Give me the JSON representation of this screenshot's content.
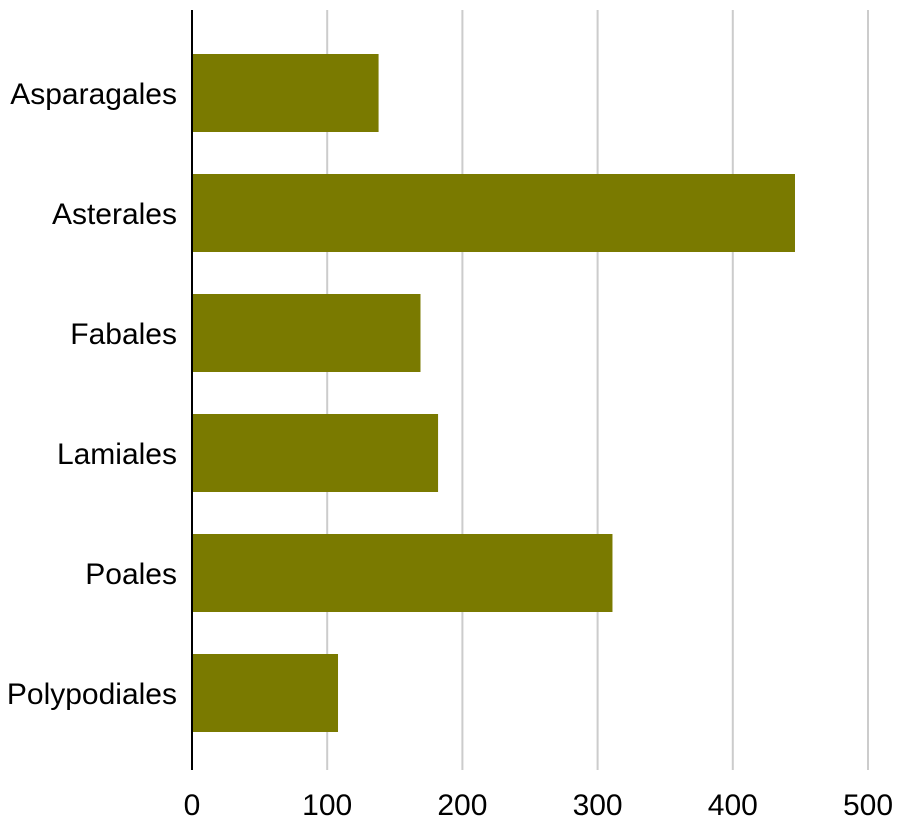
{
  "chart_data": {
    "type": "bar",
    "orientation": "horizontal",
    "title": "",
    "xlabel": "",
    "ylabel": "",
    "categories": [
      "Asparagales",
      "Asterales",
      "Fabales",
      "Lamiales",
      "Poales",
      "Polypodiales"
    ],
    "values": [
      138,
      446,
      169,
      182,
      311,
      108
    ],
    "xlim": [
      0,
      500
    ],
    "xticks": [
      0,
      100,
      200,
      300,
      400,
      500
    ],
    "xtick_labels": [
      "0",
      "100",
      "200",
      "300",
      "400",
      "500"
    ],
    "grid": true,
    "legend": "none",
    "bar_color": "#7a7a00",
    "grid_color": "#cccccc",
    "axis_color": "#000000"
  }
}
